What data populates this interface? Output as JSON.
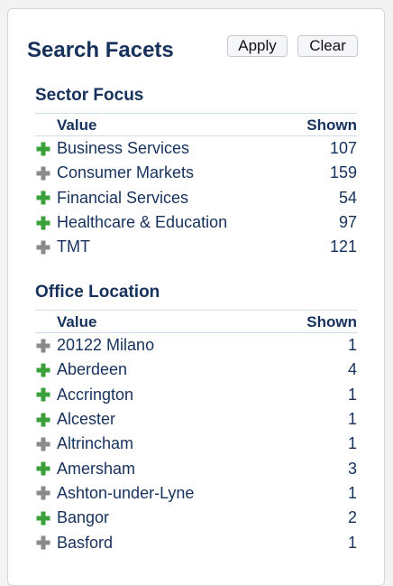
{
  "header": {
    "title": "Search Facets",
    "apply_label": "Apply",
    "clear_label": "Clear"
  },
  "colors": {
    "heading": "#16325c",
    "plus_green": "#3aa13a",
    "plus_gray": "#8a8a8a"
  },
  "sections": [
    {
      "title": "Sector Focus",
      "columns": {
        "value": "Value",
        "shown": "Shown"
      },
      "rows": [
        {
          "label": "Business Services",
          "count": "107",
          "icon": "plus-green-icon"
        },
        {
          "label": "Consumer Markets",
          "count": "159",
          "icon": "plus-gray-icon"
        },
        {
          "label": "Financial Services",
          "count": "54",
          "icon": "plus-green-icon"
        },
        {
          "label": "Healthcare & Education",
          "count": "97",
          "icon": "plus-green-icon"
        },
        {
          "label": "TMT",
          "count": "121",
          "icon": "plus-gray-icon"
        }
      ]
    },
    {
      "title": "Office Location",
      "columns": {
        "value": "Value",
        "shown": "Shown"
      },
      "rows": [
        {
          "label": "20122 Milano",
          "count": "1",
          "icon": "plus-gray-icon"
        },
        {
          "label": "Aberdeen",
          "count": "4",
          "icon": "plus-green-icon"
        },
        {
          "label": "Accrington",
          "count": "1",
          "icon": "plus-green-icon"
        },
        {
          "label": "Alcester",
          "count": "1",
          "icon": "plus-green-icon"
        },
        {
          "label": "Altrincham",
          "count": "1",
          "icon": "plus-gray-icon"
        },
        {
          "label": "Amersham",
          "count": "3",
          "icon": "plus-green-icon"
        },
        {
          "label": "Ashton-under-Lyne",
          "count": "1",
          "icon": "plus-gray-icon"
        },
        {
          "label": "Bangor",
          "count": "2",
          "icon": "plus-green-icon"
        },
        {
          "label": "Basford",
          "count": "1",
          "icon": "plus-gray-icon"
        }
      ]
    }
  ]
}
